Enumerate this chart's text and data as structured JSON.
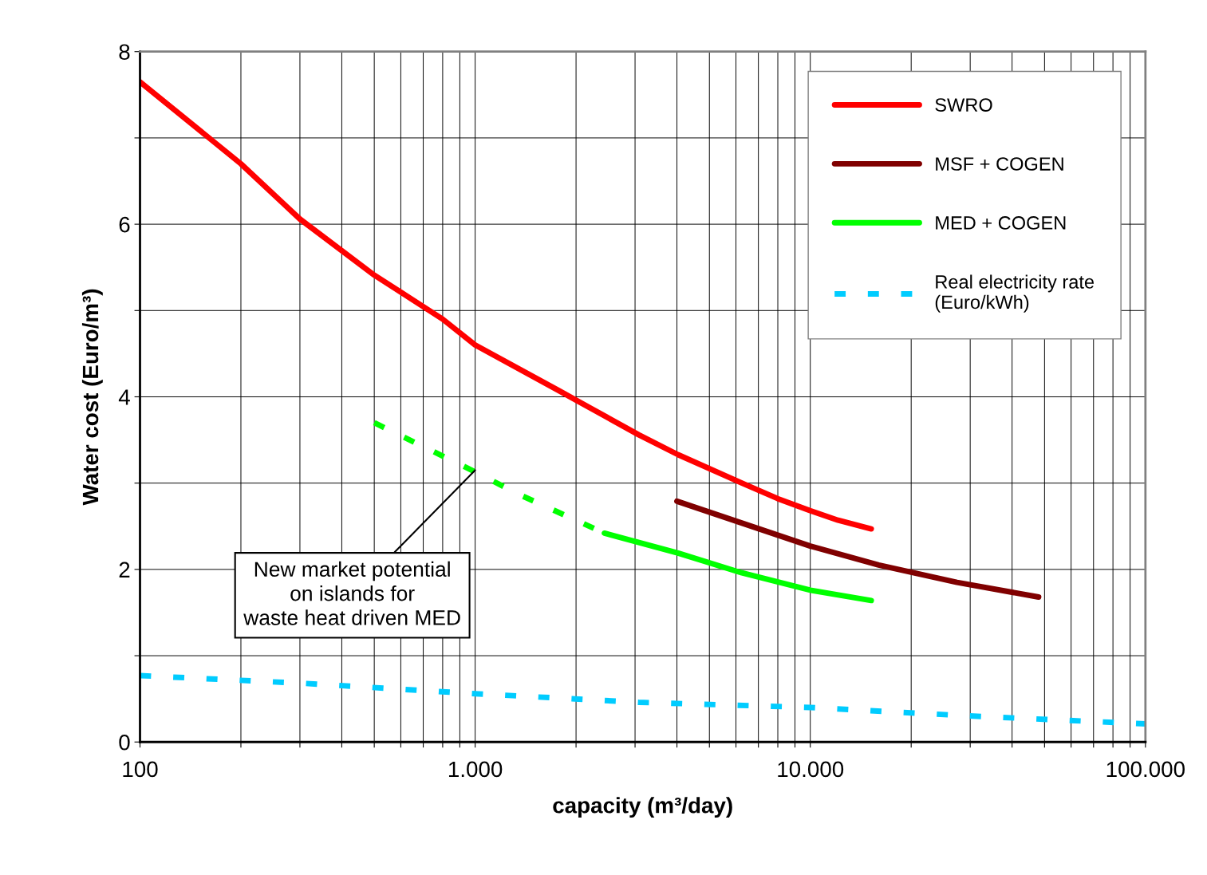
{
  "chart_data": {
    "type": "line",
    "xlabel": "capacity (m³/day)",
    "ylabel": "Water cost (Euro/m³)",
    "log": "x",
    "xlim": [
      100,
      100000
    ],
    "ylim": [
      0,
      8
    ],
    "xticks": [
      100,
      {
        "value": 200,
        "label": null
      },
      {
        "value": 300,
        "label": null
      },
      {
        "value": 400,
        "label": null
      },
      {
        "value": 500,
        "label": null
      },
      {
        "value": 600,
        "label": null
      },
      {
        "value": 700,
        "label": null
      },
      {
        "value": 800,
        "label": null
      },
      {
        "value": 900,
        "label": null
      },
      {
        "value": 1000,
        "label": "1.000"
      },
      {
        "value": 2000,
        "label": null
      },
      {
        "value": 3000,
        "label": null
      },
      {
        "value": 4000,
        "label": null
      },
      {
        "value": 5000,
        "label": null
      },
      {
        "value": 6000,
        "label": null
      },
      {
        "value": 7000,
        "label": null
      },
      {
        "value": 8000,
        "label": null
      },
      {
        "value": 9000,
        "label": null
      },
      {
        "value": 10000,
        "label": "10.000"
      },
      {
        "value": 20000,
        "label": null
      },
      {
        "value": 30000,
        "label": null
      },
      {
        "value": 40000,
        "label": null
      },
      {
        "value": 50000,
        "label": null
      },
      {
        "value": 60000,
        "label": null
      },
      {
        "value": 70000,
        "label": null
      },
      {
        "value": 80000,
        "label": null
      },
      {
        "value": 90000,
        "label": null
      },
      {
        "value": 100000,
        "label": "100.000"
      }
    ],
    "yticks": [
      0,
      {
        "value": 1,
        "label": null
      },
      2,
      {
        "value": 3,
        "label": null
      },
      4,
      {
        "value": 5,
        "label": null
      },
      6,
      {
        "value": 7,
        "label": null
      },
      8
    ],
    "grid": true,
    "legend": "top right",
    "marker": "none",
    "series": [
      {
        "name": "SWRO",
        "color": "#ff0000",
        "line_style": "solid",
        "x": [
          100,
          200,
          300,
          500,
          800,
          1000,
          1780,
          3077,
          4030,
          6250,
          8000,
          10000,
          12100,
          15200
        ],
        "values": [
          7.65,
          6.7,
          6.06,
          5.41,
          4.9,
          4.6,
          4.07,
          3.56,
          3.33,
          3.0,
          2.82,
          2.68,
          2.57,
          2.47
        ]
      },
      {
        "name": "MSF + COGEN",
        "color": "#800000",
        "line_style": "solid",
        "x": [
          4000,
          10000,
          16000,
          27400,
          48000
        ],
        "values": [
          2.79,
          2.27,
          2.05,
          1.85,
          1.68
        ]
      },
      {
        "name": "MED + COGEN",
        "color": "#00ff00",
        "line_style": "solid",
        "x": [
          2430,
          4030,
          6250,
          10000,
          15200
        ],
        "values": [
          2.42,
          2.19,
          1.96,
          1.76,
          1.64
        ]
      },
      {
        "color": "#00ff00",
        "line_style": "dashed",
        "x": [
          500,
          1000,
          1350,
          2430
        ],
        "values": [
          3.7,
          3.13,
          2.87,
          2.42
        ]
      },
      {
        "name": "Real electricity rate\n(Euro/kWh)",
        "color": "#00ccff",
        "line_style": "dashed",
        "x": [
          100,
          307,
          1000,
          3077,
          10000,
          30600,
          100000
        ],
        "values": [
          0.77,
          0.68,
          0.56,
          0.46,
          0.4,
          0.3,
          0.21
        ]
      }
    ],
    "annotations": [
      {
        "text": "New market potential\non islands for\nwaste heat driven MED",
        "x": 1000,
        "y": 3.15
      }
    ]
  }
}
